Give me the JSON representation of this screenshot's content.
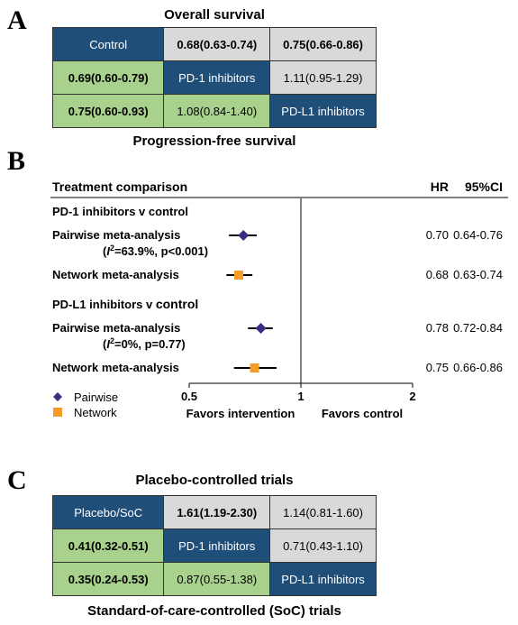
{
  "panels": {
    "a": {
      "letter": "A",
      "title": "Overall survival",
      "bottom_title": "Progression-free survival",
      "rows": [
        [
          {
            "text": "Control",
            "style": "blue"
          },
          {
            "text": "0.68(0.63-0.74)",
            "style": "gray",
            "bold": true
          },
          {
            "text": "0.75(0.66-0.86)",
            "style": "gray",
            "bold": true
          }
        ],
        [
          {
            "text": "0.69(0.60-0.79)",
            "style": "green",
            "bold": true
          },
          {
            "text": "PD-1 inhibitors",
            "style": "blue"
          },
          {
            "text": "1.11(0.95-1.29)",
            "style": "gray"
          }
        ],
        [
          {
            "text": "0.75(0.60-0.93)",
            "style": "green",
            "bold": true
          },
          {
            "text": "1.08(0.84-1.40)",
            "style": "green"
          },
          {
            "text": "PD-L1 inhibitors",
            "style": "blue"
          }
        ]
      ]
    },
    "b": {
      "letter": "B",
      "chart_data": {
        "type": "forest",
        "header": {
          "label": "Treatment comparison",
          "hr": "HR",
          "ci": "95%CI"
        },
        "x_scale": "log",
        "xlim": [
          0.5,
          2
        ],
        "ticks": [
          0.5,
          1,
          2
        ],
        "tick_labels": [
          "0.5",
          "1",
          "2"
        ],
        "reference_line": 1,
        "favors_left": "Favors intervention",
        "favors_right": "Favors control",
        "groups": [
          {
            "title": "PD-1 inhibitors v control",
            "rows": [
              {
                "label": "Pairwise meta-analysis",
                "het_prefix": "(",
                "het_i": "I",
                "het_sup": "2",
                "het_rest": "=63.9%, p<0.001)",
                "method": "Pairwise",
                "hr": 0.7,
                "lo": 0.64,
                "hi": 0.76,
                "hr_text": "0.70",
                "ci_text": "0.64-0.76"
              },
              {
                "label": "Network meta-analysis",
                "method": "Network",
                "hr": 0.68,
                "lo": 0.63,
                "hi": 0.74,
                "hr_text": "0.68",
                "ci_text": "0.63-0.74"
              }
            ]
          },
          {
            "title_main": "PD-L1 inhibitors v ",
            "title_tail": "control",
            "rows": [
              {
                "label": "Pairwise meta-analysis",
                "het_prefix": "(",
                "het_i": "I",
                "het_sup": "2",
                "het_rest": "=0%, p=0.77)",
                "method": "Pairwise",
                "hr": 0.78,
                "lo": 0.72,
                "hi": 0.84,
                "hr_text": "0.78",
                "ci_text": "0.72-0.84"
              },
              {
                "label": "Network meta-analysis",
                "method": "Network",
                "hr": 0.75,
                "lo": 0.66,
                "hi": 0.86,
                "hr_text": "0.75",
                "ci_text": "0.66-0.86"
              }
            ]
          }
        ],
        "legend": [
          {
            "name": "Pairwise",
            "marker": "diamond",
            "color": "#3d2b82"
          },
          {
            "name": "Network",
            "marker": "square",
            "color": "#f59b2a"
          }
        ]
      }
    },
    "c": {
      "letter": "C",
      "title": "Placebo-controlled trials",
      "bottom_title": "Standard-of-care-controlled (SoC) trials",
      "rows": [
        [
          {
            "text": "Placebo/SoC",
            "style": "blue"
          },
          {
            "text": "1.61(1.19-2.30)",
            "style": "gray",
            "bold": true
          },
          {
            "text": "1.14(0.81-1.60)",
            "style": "gray"
          }
        ],
        [
          {
            "text": "0.41(0.32-0.51)",
            "style": "green",
            "bold": true
          },
          {
            "text": "PD-1 inhibitors",
            "style": "blue"
          },
          {
            "text": "0.71(0.43-1.10)",
            "style": "gray"
          }
        ],
        [
          {
            "text": "0.35(0.24-0.53)",
            "style": "green",
            "bold": true
          },
          {
            "text": "0.87(0.55-1.38)",
            "style": "green"
          },
          {
            "text": "PD-L1 inhibitors",
            "style": "blue"
          }
        ]
      ]
    }
  }
}
